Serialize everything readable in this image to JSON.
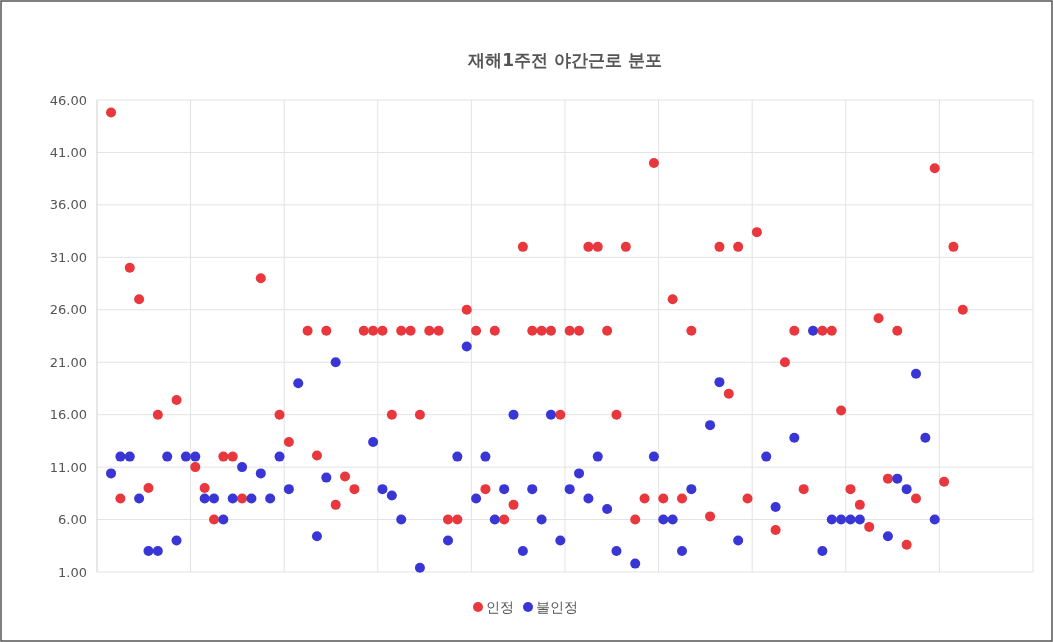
{
  "chart_data": {
    "type": "scatter",
    "title": "재해1주전 야간근로 분포",
    "marker": "circle",
    "grid": true,
    "legend": "bottom",
    "tick_labels": "y",
    "categories": [
      null,
      null,
      null,
      null,
      null,
      null,
      null,
      null,
      null,
      null,
      null,
      null,
      null,
      null,
      null,
      null,
      null,
      null,
      null,
      null,
      null,
      null,
      null,
      null,
      null,
      null,
      null,
      null,
      null,
      null,
      null,
      null,
      null,
      null,
      null,
      null,
      null,
      null,
      null,
      null,
      null,
      null,
      null,
      null,
      null,
      null,
      null,
      null,
      null,
      null,
      null,
      null,
      null,
      null,
      null,
      null,
      null,
      null,
      null,
      null,
      null,
      null,
      null,
      null,
      null,
      null,
      null,
      null,
      null,
      null,
      null,
      null,
      null,
      null,
      null,
      null,
      null,
      null,
      null,
      null,
      null,
      null,
      null,
      null,
      null,
      null,
      null,
      null,
      null,
      null,
      null,
      null,
      null,
      null,
      null,
      null,
      null,
      null,
      null,
      null
    ],
    "ylim": [
      1,
      46
    ],
    "yticks": [
      {
        "value": 1,
        "label": "1.00"
      },
      {
        "value": 6,
        "label": "6.00"
      },
      {
        "value": 11,
        "label": "11.00"
      },
      {
        "value": 16,
        "label": "16.00"
      },
      {
        "value": 21,
        "label": "21.00"
      },
      {
        "value": 26,
        "label": "26.00"
      },
      {
        "value": 31,
        "label": "31.00"
      },
      {
        "value": 36,
        "label": "36.00"
      },
      {
        "value": 41,
        "label": "41.00"
      },
      {
        "value": 46,
        "label": "46.00"
      }
    ],
    "series": [
      {
        "name": "인정",
        "color": "#e8383d",
        "values": [
          null,
          44.8,
          8,
          30,
          27,
          9,
          16,
          null,
          17.4,
          null,
          11,
          9,
          6,
          12,
          12,
          8,
          null,
          29,
          null,
          16,
          13.4,
          null,
          24,
          12.1,
          24,
          7.4,
          10.1,
          8.9,
          24,
          24,
          24,
          16,
          24,
          24,
          16,
          24,
          24,
          6,
          6,
          26,
          24,
          8.9,
          24,
          6,
          7.4,
          32,
          24,
          24,
          24,
          16,
          24,
          24,
          32,
          32,
          24,
          16,
          32,
          6,
          8,
          40,
          8,
          27,
          8,
          24,
          null,
          6.3,
          32,
          18,
          32,
          8,
          33.4,
          null,
          5,
          21,
          24,
          8.9,
          null,
          24,
          24,
          16.4,
          8.9,
          7.4,
          5.3,
          25.2,
          9.9,
          24,
          3.6,
          8,
          null,
          39.5,
          9.6,
          32,
          26,
          null,
          null,
          null,
          null,
          null,
          null,
          null
        ]
      },
      {
        "name": "불인정",
        "color": "#3a36d6",
        "values": [
          null,
          10.4,
          12,
          12,
          8,
          3,
          3,
          12,
          4,
          12,
          12,
          8,
          8,
          6,
          8,
          11,
          8,
          10.4,
          8,
          12,
          8.9,
          19,
          null,
          4.4,
          10,
          21,
          null,
          null,
          null,
          13.4,
          8.9,
          8.3,
          6,
          null,
          1.4,
          null,
          null,
          4,
          12,
          22.5,
          8,
          12,
          6,
          8.9,
          16,
          3,
          8.9,
          6,
          16,
          4,
          8.9,
          10.4,
          8,
          12,
          7,
          3,
          null,
          1.8,
          null,
          12,
          6,
          6,
          3,
          8.9,
          null,
          15,
          19.1,
          null,
          4,
          null,
          null,
          12,
          7.2,
          null,
          13.8,
          null,
          24,
          3,
          6,
          6,
          6,
          6,
          null,
          null,
          4.4,
          9.9,
          8.9,
          19.9,
          13.8,
          6,
          null,
          null,
          null,
          null,
          null,
          null,
          null,
          null,
          null,
          null
        ]
      }
    ]
  }
}
